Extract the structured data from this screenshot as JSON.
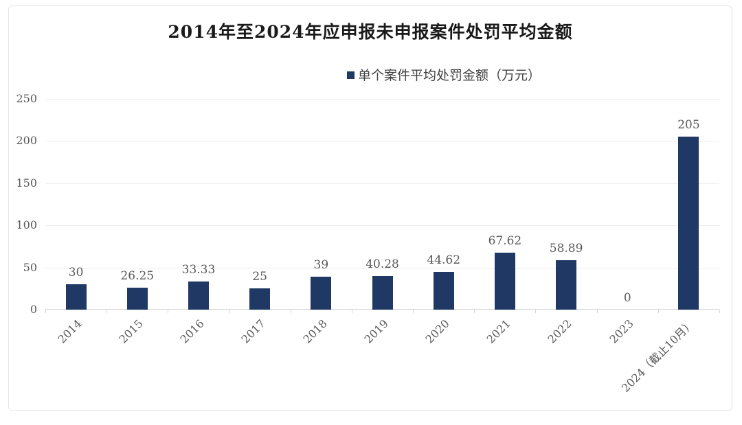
{
  "chart_data": {
    "type": "bar",
    "title": "2014年至2024年应申报未申报案件处罚平均金额",
    "legend": {
      "position": "top",
      "entries": [
        "单个案件平均处罚金额（万元）"
      ]
    },
    "categories": [
      "2014",
      "2015",
      "2016",
      "2017",
      "2018",
      "2019",
      "2020",
      "2021",
      "2022",
      "2023",
      "2024（截止10月）"
    ],
    "series": [
      {
        "name": "单个案件平均处罚金额（万元）",
        "values": [
          30,
          26.25,
          33.33,
          25,
          39,
          40.28,
          44.62,
          67.62,
          58.89,
          0,
          205
        ]
      }
    ],
    "value_labels": [
      "30",
      "26.25",
      "33.33",
      "25",
      "39",
      "40.28",
      "44.62",
      "67.62",
      "58.89",
      "0",
      "205"
    ],
    "xlabel": "",
    "ylabel": "",
    "ylim": [
      0,
      250
    ],
    "yticks": [
      0,
      50,
      100,
      150,
      200,
      250
    ],
    "grid": true,
    "x_label_rotation_deg": -45
  },
  "colors": {
    "bar": "#1f3864",
    "legend_marker": "#1f3864",
    "title_text": "#1a1a1a",
    "legend_text": "#404040",
    "axis_text": "#595959",
    "data_label_text": "#595959",
    "gridline": "#ededed",
    "axis_line": "#d6d6d6",
    "panel_border": "#e5e5e5",
    "panel_background": "#ffffff"
  }
}
